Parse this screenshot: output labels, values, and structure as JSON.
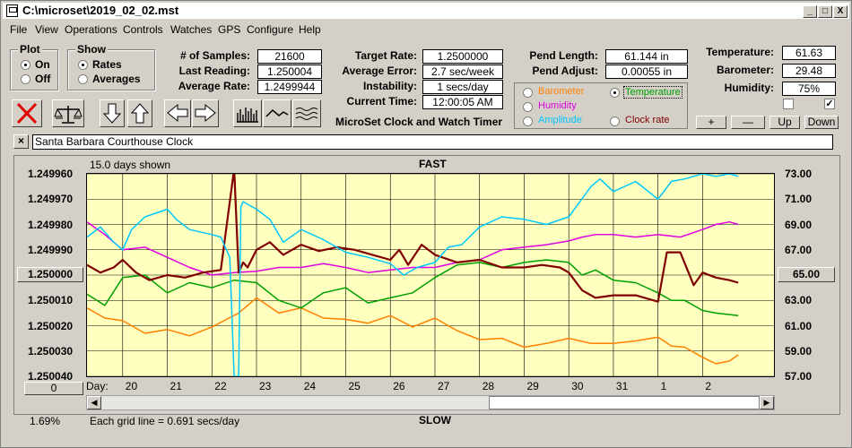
{
  "window": {
    "title": "C:\\microset\\2019_02_02.mst",
    "min_glyph": "_",
    "max_glyph": "□",
    "close_glyph": "X"
  },
  "menu": [
    "File",
    "View",
    "Operations",
    "Controls",
    "Watches",
    "GPS",
    "Configure",
    "Help"
  ],
  "plot_group": {
    "title": "Plot",
    "options": [
      "On",
      "Off"
    ],
    "selected": "On"
  },
  "show_group": {
    "title": "Show",
    "options": [
      "Rates",
      "Averages"
    ],
    "selected": "Rates"
  },
  "stats": {
    "samples_label": "# of Samples:",
    "samples": "21600",
    "last_reading_label": "Last Reading:",
    "last_reading": "1.250004",
    "average_rate_label": "Average Rate:",
    "average_rate": "1.2499944",
    "target_rate_label": "Target Rate:",
    "target_rate": "1.2500000",
    "average_error_label": "Average Error:",
    "average_error": "2.7 sec/week",
    "instability_label": "Instability:",
    "instability": "1 secs/day",
    "current_time_label": "Current Time:",
    "current_time": "12:00:05 AM",
    "pend_length_label": "Pend Length:",
    "pend_length": "61.144 in",
    "pend_adjust_label": "Pend Adjust:",
    "pend_adjust": "0.00055 in",
    "temperature_label": "Temperature:",
    "temperature": "61.63",
    "barometer_label": "Barometer:",
    "barometer": "29.48",
    "humidity_label": "Humidity:",
    "humidity": "75%"
  },
  "app_caption": "MicroSet Clock and Watch Timer",
  "sensor_options": [
    {
      "label": "Barometer",
      "color": "#ff8000",
      "selected": false
    },
    {
      "label": "Temperature",
      "color": "#00a000",
      "selected": true
    },
    {
      "label": "Humidity",
      "color": "#e000e0",
      "selected": false
    },
    {
      "label": "Clock rate",
      "color": "#800000",
      "selected": false
    },
    {
      "label": "Amplitude",
      "color": "#00c8ff",
      "selected": false
    }
  ],
  "small_buttons": {
    "plus": "+",
    "minus": "—",
    "up": "Up",
    "down": "Down"
  },
  "toolbar_icons": [
    "clear-icon",
    "balance-scale-icon",
    "arrow-down-icon",
    "arrow-up-icon",
    "arrow-left-icon",
    "arrow-right-icon",
    "bar-graph-icon",
    "line-graph-icon",
    "wave-icon"
  ],
  "clock_name": "Santa Barbara Courthouse Clock",
  "clear_name_glyph": "×",
  "chart_data": {
    "type": "line",
    "days_shown": "15.0 days shown",
    "top_label": "FAST",
    "bottom_label": "SLOW",
    "x_prefix": "Day:",
    "x_tick_labels": [
      "20",
      "21",
      "22",
      "23",
      "24",
      "25",
      "26",
      "27",
      "28",
      "29",
      "30",
      "31",
      "1",
      "2"
    ],
    "x_range": [
      19.2,
      34.6
    ],
    "y_left_ticks": [
      "1.249960",
      "1.249970",
      "1.249980",
      "1.249990",
      "1.250000",
      "1.250010",
      "1.250020",
      "1.250030",
      "1.250040"
    ],
    "y_left_range": [
      1.24996,
      1.25004
    ],
    "y_right_ticks": [
      "73.00",
      "71.00",
      "69.00",
      "67.00",
      "65.00",
      "63.00",
      "61.00",
      "59.00",
      "57.00"
    ],
    "y_right_range": [
      57,
      73
    ],
    "left_button": "1.250000",
    "right_button": "65.00",
    "bottom_left_button": "0",
    "grid_note": "Each grid line = 0.691 secs/day",
    "percent": "1.69%",
    "grid": true,
    "series": [
      {
        "name": "Barometer",
        "color": "#ff8000",
        "axis": "right",
        "x": [
          19.2,
          19.6,
          20.0,
          20.5,
          21.0,
          21.5,
          22.0,
          22.6,
          23.0,
          23.5,
          24.0,
          24.5,
          25.0,
          25.5,
          26.0,
          26.5,
          27.0,
          27.5,
          28.0,
          28.5,
          29.0,
          29.5,
          30.0,
          30.5,
          31.0,
          31.5,
          32.0,
          32.3,
          32.6,
          33.0,
          33.3,
          33.6,
          33.8
        ],
        "y": [
          62.4,
          61.6,
          61.4,
          60.4,
          60.7,
          60.2,
          60.9,
          62.0,
          63.2,
          62.0,
          62.4,
          61.6,
          61.5,
          61.2,
          61.8,
          60.9,
          61.6,
          60.6,
          59.9,
          60.0,
          59.3,
          59.6,
          60.0,
          59.6,
          59.6,
          59.8,
          60.1,
          59.4,
          59.3,
          58.5,
          58.0,
          58.2,
          58.7
        ]
      },
      {
        "name": "Temperature",
        "color": "#00a000",
        "axis": "right",
        "x": [
          19.2,
          19.6,
          20.0,
          20.5,
          21.0,
          21.5,
          22.0,
          22.5,
          23.0,
          23.5,
          24.0,
          24.5,
          25.0,
          25.5,
          26.0,
          26.5,
          27.0,
          27.5,
          28.0,
          28.5,
          29.0,
          29.5,
          30.0,
          30.3,
          30.6,
          31.0,
          31.5,
          32.0,
          32.3,
          32.6,
          33.0,
          33.3,
          33.8
        ],
        "y": [
          63.5,
          62.6,
          64.8,
          65.0,
          63.6,
          64.4,
          64.0,
          64.6,
          64.4,
          63.0,
          62.4,
          63.6,
          64.0,
          62.8,
          63.2,
          63.6,
          64.8,
          65.8,
          66.0,
          65.6,
          66.0,
          66.2,
          66.0,
          65.0,
          65.4,
          64.6,
          64.4,
          63.6,
          63.0,
          63.0,
          62.2,
          62.0,
          61.8
        ]
      },
      {
        "name": "Humidity",
        "color": "#e000e0",
        "axis": "right",
        "x": [
          19.2,
          19.6,
          20.0,
          20.5,
          21.0,
          21.5,
          22.0,
          22.5,
          23.0,
          23.5,
          24.0,
          24.5,
          25.0,
          25.5,
          26.0,
          26.5,
          27.0,
          27.5,
          28.0,
          28.5,
          29.0,
          29.5,
          30.0,
          30.3,
          30.6,
          31.0,
          31.5,
          32.0,
          32.5,
          33.0,
          33.3,
          33.6,
          33.8
        ],
        "y": [
          69.2,
          68.2,
          67.0,
          67.2,
          66.4,
          65.6,
          65.0,
          65.2,
          65.3,
          65.6,
          65.6,
          65.9,
          65.6,
          65.2,
          65.4,
          65.6,
          65.6,
          66.0,
          66.2,
          67.0,
          67.2,
          67.4,
          67.7,
          68.0,
          68.2,
          68.2,
          68.0,
          68.2,
          68.0,
          68.6,
          69.0,
          69.2,
          69.0
        ]
      },
      {
        "name": "Clock rate",
        "color": "#800000",
        "axis": "right",
        "x": [
          19.2,
          19.5,
          19.8,
          20.0,
          20.3,
          20.6,
          21.0,
          21.4,
          21.8,
          22.2,
          22.5,
          22.6,
          22.7,
          22.8,
          23.0,
          23.3,
          23.6,
          24.0,
          24.4,
          24.8,
          25.2,
          25.6,
          26.0,
          26.2,
          26.4,
          26.7,
          27.0,
          27.5,
          28.0,
          28.5,
          29.0,
          29.4,
          29.8,
          30.0,
          30.3,
          30.6,
          31.0,
          31.5,
          32.0,
          32.2,
          32.5,
          32.8,
          33.0,
          33.3,
          33.6,
          33.8
        ],
        "y": [
          65.8,
          65.2,
          65.6,
          66.2,
          65.2,
          64.6,
          65.0,
          64.8,
          65.2,
          65.4,
          73.4,
          65.2,
          66.0,
          65.6,
          67.0,
          67.6,
          66.6,
          67.4,
          66.9,
          67.2,
          67.0,
          66.6,
          66.2,
          67.0,
          65.8,
          67.4,
          66.6,
          66.0,
          66.2,
          65.6,
          65.6,
          65.8,
          65.6,
          65.2,
          63.8,
          63.2,
          63.4,
          63.4,
          62.9,
          66.8,
          66.8,
          64.2,
          65.2,
          64.8,
          64.6,
          64.4
        ]
      },
      {
        "name": "Amplitude",
        "color": "#00c8ff",
        "axis": "right",
        "x": [
          19.2,
          19.5,
          19.8,
          20.0,
          20.2,
          20.5,
          21.0,
          21.2,
          21.5,
          22.0,
          22.2,
          22.4,
          22.5,
          22.6,
          22.65,
          22.7,
          23.0,
          23.3,
          23.6,
          24.0,
          24.5,
          25.0,
          25.5,
          26.0,
          26.3,
          26.6,
          27.0,
          27.3,
          27.6,
          28.0,
          28.5,
          29.0,
          29.5,
          30.0,
          30.5,
          30.7,
          31.0,
          31.5,
          32.0,
          32.3,
          32.6,
          33.0,
          33.3,
          33.6,
          33.8
        ],
        "y": [
          68.0,
          68.8,
          67.6,
          67.0,
          68.6,
          69.6,
          70.2,
          69.4,
          68.6,
          68.2,
          68.0,
          66.4,
          57.0,
          57.0,
          70.4,
          70.8,
          70.2,
          69.4,
          67.6,
          68.6,
          67.8,
          66.8,
          66.4,
          65.9,
          65.0,
          65.6,
          66.0,
          67.2,
          67.4,
          68.8,
          69.6,
          69.4,
          69.0,
          69.6,
          72.0,
          72.6,
          71.6,
          72.4,
          71.0,
          72.4,
          72.6,
          73.0,
          72.8,
          73.0,
          72.8
        ]
      }
    ]
  }
}
